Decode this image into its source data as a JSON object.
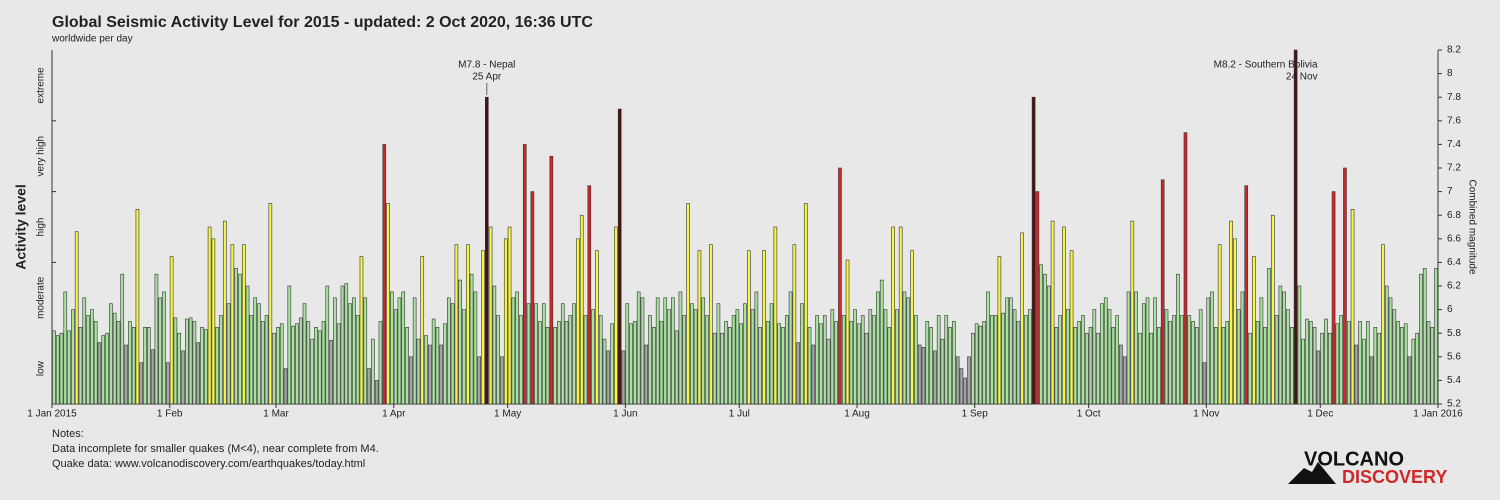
{
  "chart_data": {
    "type": "bar",
    "title": "Global Seismic Activity Level for 2015 - updated:  2 Oct 2020, 16:36 UTC",
    "subtitle": "worldwide per day",
    "y_axis_label": "Activity level",
    "y2_axis_label": "Combined magnitude",
    "levels": [
      "low",
      "moderate",
      "high",
      "very high",
      "extreme"
    ],
    "xlim": [
      0,
      365
    ],
    "xticks": [
      {
        "value": 0,
        "label": "1 Jan 2015"
      },
      {
        "value": 31,
        "label": "1 Feb"
      },
      {
        "value": 59,
        "label": "1 Mar"
      },
      {
        "value": 90,
        "label": "1 Apr"
      },
      {
        "value": 120,
        "label": "1 May"
      },
      {
        "value": 151,
        "label": "1 Jun"
      },
      {
        "value": 181,
        "label": "1 Jul"
      },
      {
        "value": 212,
        "label": "1 Aug"
      },
      {
        "value": 243,
        "label": "1 Sep"
      },
      {
        "value": 273,
        "label": "1 Oct"
      },
      {
        "value": 304,
        "label": "1 Nov"
      },
      {
        "value": 334,
        "label": "1 Dec"
      },
      {
        "value": 365,
        "label": "1 Jan 2016"
      }
    ],
    "ylim": [
      5.2,
      8.2
    ],
    "yticks": [
      5.2,
      5.4,
      5.6,
      5.8,
      6,
      6.2,
      6.4,
      6.6,
      6.8,
      7,
      7.2,
      7.4,
      7.6,
      7.8,
      8,
      8.2
    ],
    "color_levels": [
      {
        "min": 5.2,
        "color": "#a6a6a6"
      },
      {
        "min": 5.75,
        "color": "#a9e2a0"
      },
      {
        "min": 6.4,
        "color": "#f6f54a"
      },
      {
        "min": 6.95,
        "color": "#d0282a"
      },
      {
        "min": 7.65,
        "color": "#4a1212"
      }
    ],
    "values": [
      5.82,
      5.78,
      5.8,
      6.15,
      5.82,
      6.0,
      6.66,
      5.85,
      6.1,
      5.95,
      6.0,
      5.9,
      5.72,
      5.78,
      5.8,
      6.05,
      5.97,
      5.9,
      6.3,
      5.7,
      5.9,
      5.85,
      6.85,
      5.55,
      5.85,
      5.85,
      5.66,
      6.3,
      6.1,
      6.15,
      5.55,
      6.45,
      5.93,
      5.8,
      5.65,
      5.92,
      5.93,
      5.9,
      5.72,
      5.85,
      5.83,
      6.7,
      6.6,
      5.85,
      5.95,
      6.75,
      6.05,
      6.55,
      6.35,
      6.3,
      6.55,
      6.2,
      5.95,
      6.1,
      6.05,
      5.9,
      5.95,
      6.9,
      5.8,
      5.85,
      5.88,
      5.5,
      6.2,
      5.86,
      5.88,
      5.93,
      6.05,
      5.9,
      5.75,
      5.85,
      5.82,
      5.9,
      6.2,
      5.74,
      6.1,
      5.88,
      6.2,
      6.22,
      6.05,
      6.1,
      5.95,
      6.45,
      6.1,
      5.5,
      5.75,
      5.4,
      5.9,
      7.4,
      6.9,
      6.15,
      6.0,
      6.1,
      6.15,
      5.85,
      5.6,
      6.1,
      5.75,
      6.45,
      5.78,
      5.7,
      5.92,
      5.85,
      5.7,
      5.88,
      6.1,
      6.05,
      6.55,
      6.25,
      6.0,
      6.55,
      6.3,
      6.15,
      5.6,
      6.5,
      7.8,
      6.7,
      6.2,
      5.95,
      5.6,
      6.6,
      6.7,
      6.1,
      6.15,
      5.95,
      7.4,
      6.05,
      7.0,
      6.05,
      5.9,
      6.05,
      5.85,
      7.3,
      5.85,
      5.9,
      6.05,
      5.9,
      5.95,
      6.05,
      6.6,
      6.8,
      5.95,
      7.05,
      6.0,
      6.5,
      5.95,
      5.75,
      5.65,
      5.88,
      6.7,
      7.7,
      5.65,
      6.05,
      5.88,
      5.9,
      6.15,
      6.1,
      5.7,
      5.95,
      5.85,
      6.1,
      5.9,
      6.1,
      6.0,
      6.1,
      5.82,
      6.15,
      5.95,
      6.9,
      6.05,
      6.0,
      6.5,
      6.1,
      5.95,
      6.55,
      5.8,
      6.05,
      5.8,
      5.9,
      5.85,
      5.95,
      6.0,
      5.88,
      6.05,
      6.5,
      6.0,
      6.15,
      5.85,
      6.5,
      5.9,
      6.05,
      6.7,
      5.88,
      5.85,
      5.95,
      6.15,
      6.55,
      5.72,
      6.05,
      6.9,
      5.85,
      5.7,
      5.95,
      5.88,
      5.95,
      5.75,
      6.0,
      5.9,
      7.2,
      5.95,
      6.42,
      5.9,
      6.0,
      5.88,
      5.95,
      5.8,
      6.0,
      5.95,
      6.15,
      6.25,
      6.0,
      5.85,
      6.7,
      6.0,
      6.7,
      6.15,
      6.1,
      6.5,
      5.95,
      5.7,
      5.68,
      5.9,
      5.85,
      5.65,
      5.95,
      5.75,
      5.95,
      5.85,
      5.9,
      5.6,
      5.5,
      5.42,
      5.6,
      5.8,
      5.88,
      5.86,
      5.9,
      6.15,
      5.95,
      5.95,
      6.45,
      5.97,
      6.1,
      6.1,
      6.0,
      5.9,
      6.65,
      5.95,
      6.0,
      7.8,
      7.0,
      6.38,
      6.3,
      6.2,
      6.75,
      5.85,
      5.95,
      6.7,
      6.0,
      6.5,
      5.85,
      5.9,
      5.95,
      5.8,
      5.85,
      6.0,
      5.8,
      6.05,
      6.1,
      6.0,
      5.85,
      5.95,
      5.7,
      5.6,
      6.15,
      6.75,
      6.15,
      5.8,
      6.05,
      6.1,
      5.8,
      6.1,
      5.85,
      7.1,
      6.0,
      5.9,
      5.95,
      6.3,
      5.95,
      7.5,
      5.95,
      5.9,
      5.85,
      6.0,
      5.55,
      6.1,
      6.15,
      5.85,
      6.55,
      5.85,
      5.9,
      6.75,
      6.6,
      6.0,
      6.15,
      7.05,
      5.8,
      6.45,
      5.9,
      6.1,
      5.85,
      6.35,
      6.8,
      5.95,
      6.2,
      6.15,
      6.0,
      5.85,
      8.2,
      6.2,
      5.75,
      5.92,
      5.9,
      5.85,
      5.65,
      5.8,
      5.92,
      5.8,
      7.0,
      5.88,
      5.95,
      7.2,
      5.9,
      6.85,
      5.7,
      5.9,
      5.75,
      5.9,
      5.6,
      5.85,
      5.8,
      6.55,
      6.2,
      6.1,
      6.0,
      5.9,
      5.85,
      5.88,
      5.6,
      5.75,
      5.8,
      6.3,
      6.35,
      5.9,
      5.85,
      6.35
    ],
    "annotations": [
      {
        "index": 114,
        "text": [
          "M7.8 - Nepal",
          "25 Apr"
        ]
      },
      {
        "index": 327,
        "text": [
          "M8.2 - Southern Bolivia",
          "24 Nov"
        ]
      }
    ],
    "notes": [
      "Notes:",
      "Data incomplete for smaller quakes (M<4), near complete from M4.",
      "Quake data: www.volcanodiscovery.com/earthquakes/today.html"
    ],
    "logo": [
      "VOLCANO",
      "DISCOVERY"
    ]
  }
}
